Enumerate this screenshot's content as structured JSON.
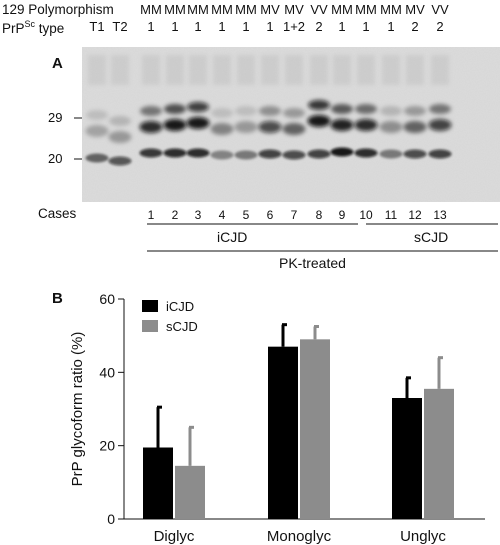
{
  "header": {
    "row1_label": "129 Polymorphism",
    "row2_label_pre": "PrP",
    "row2_label_sup": "Sc",
    "row2_label_post": " type",
    "genotypes": [
      "",
      "",
      "MM",
      "MM",
      "MM",
      "MM",
      "MM",
      "MV",
      "MV",
      "VV",
      "MM",
      "MM",
      "MM",
      "MV",
      "VV"
    ],
    "types": [
      "T1",
      "T2",
      "1",
      "1",
      "1",
      "1",
      "1",
      "1",
      "1+2",
      "2",
      "1",
      "1",
      "1",
      "2",
      "2"
    ]
  },
  "panel_a": {
    "letter": "A",
    "marker_29": "29",
    "marker_20": "20",
    "cases_label": "Cases",
    "cases": [
      "1",
      "2",
      "3",
      "4",
      "5",
      "6",
      "7",
      "8",
      "9",
      "10",
      "11",
      "12",
      "13"
    ],
    "group_icjd": "iCJD",
    "group_scjd": "sCJD",
    "treatment": "PK-treated"
  },
  "panel_b": {
    "letter": "B"
  },
  "chart_data": {
    "type": "bar",
    "ylabel": "PrP glycoform ratio (%)",
    "xlabel": "",
    "ylim": [
      0,
      60
    ],
    "yticks": [
      "0",
      "20",
      "40",
      "60"
    ],
    "categories": [
      "Diglyc",
      "Monoglyc",
      "Unglyc"
    ],
    "series": [
      {
        "name": "iCJD",
        "color": "#000000",
        "values": [
          19.5,
          47,
          33
        ],
        "errors": [
          11,
          6,
          5.5
        ]
      },
      {
        "name": "sCJD",
        "color": "#8c8c8c",
        "values": [
          14.5,
          49,
          35.5
        ],
        "errors": [
          10.5,
          3.5,
          8.5
        ]
      }
    ],
    "legend_position": "top-left",
    "grid": false
  }
}
